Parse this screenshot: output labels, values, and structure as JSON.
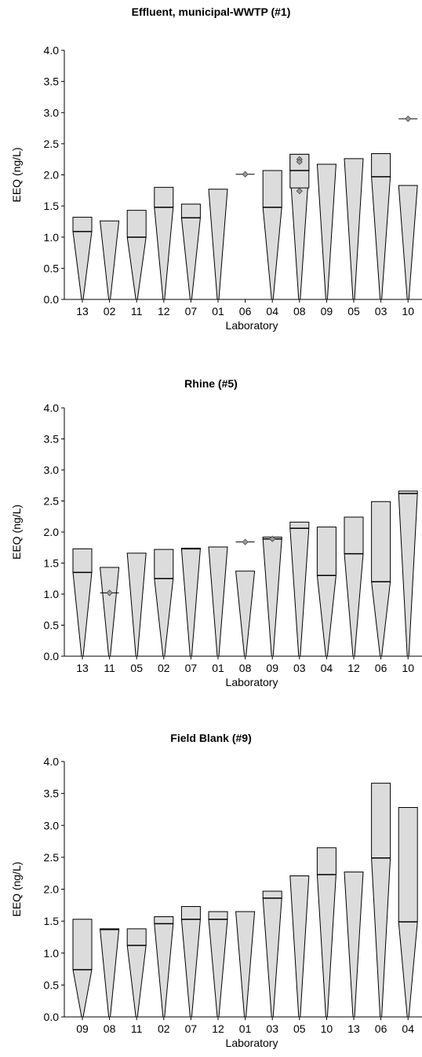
{
  "colors": {
    "fill": "#dcdcdc",
    "stroke": "#000000",
    "marker": "#9a9a9a",
    "axis": "#000000"
  },
  "chart_data": [
    {
      "type": "bar",
      "title": "Effluent, municipal-WWTP (#1)",
      "xlabel": "Laboratory",
      "ylabel": "EEQ (ng/L)",
      "ylim": [
        0,
        4
      ],
      "yticks": [
        "0.0",
        "0.5",
        "1.0",
        "1.5",
        "2.0",
        "2.5",
        "3.0",
        "3.5",
        "4.0"
      ],
      "grid": false,
      "categories": [
        "13",
        "02",
        "11",
        "12",
        "07",
        "01",
        "06",
        "04",
        "08",
        "09",
        "05",
        "03",
        "10"
      ],
      "upper": [
        1.32,
        1.26,
        1.43,
        1.8,
        1.53,
        1.77,
        null,
        2.07,
        2.33,
        2.17,
        2.26,
        2.34,
        1.83
      ],
      "median": [
        1.09,
        null,
        1.0,
        1.48,
        1.31,
        null,
        null,
        1.48,
        2.07,
        null,
        null,
        1.97,
        null
      ],
      "lower": [
        null,
        null,
        null,
        null,
        null,
        null,
        null,
        null,
        1.79,
        null,
        null,
        null,
        null
      ],
      "points": [
        [],
        [],
        [],
        [],
        [],
        [],
        [
          2.01
        ],
        [],
        [
          2.25,
          2.21,
          1.74
        ],
        [],
        [],
        [],
        [
          2.9
        ]
      ],
      "point_lines": [
        null,
        null,
        null,
        null,
        null,
        null,
        2.01,
        null,
        null,
        null,
        null,
        null,
        2.9
      ]
    },
    {
      "type": "bar",
      "title": "Rhine (#5)",
      "xlabel": "Laboratory",
      "ylabel": "EEQ (ng/L)",
      "ylim": [
        0,
        4
      ],
      "yticks": [
        "0.0",
        "0.5",
        "1.0",
        "1.5",
        "2.0",
        "2.5",
        "3.0",
        "3.5",
        "4.0"
      ],
      "grid": false,
      "categories": [
        "13",
        "11",
        "05",
        "02",
        "07",
        "01",
        "08",
        "09",
        "03",
        "04",
        "12",
        "06",
        "10"
      ],
      "upper": [
        1.73,
        1.43,
        1.66,
        1.72,
        1.74,
        1.76,
        1.37,
        1.92,
        2.16,
        2.08,
        2.24,
        2.49,
        2.66
      ],
      "median": [
        1.35,
        null,
        null,
        1.25,
        1.73,
        null,
        null,
        1.89,
        2.06,
        1.3,
        1.65,
        1.2,
        2.62
      ],
      "lower": [
        null,
        null,
        null,
        null,
        null,
        null,
        null,
        null,
        null,
        null,
        null,
        null,
        null
      ],
      "points": [
        [],
        [
          1.02
        ],
        [],
        [],
        [],
        [],
        [
          1.84
        ],
        [
          1.89
        ],
        [],
        [],
        [],
        [],
        []
      ],
      "point_lines": [
        null,
        1.02,
        null,
        null,
        null,
        null,
        1.84,
        null,
        null,
        null,
        null,
        null,
        null
      ]
    },
    {
      "type": "bar",
      "title": "Field Blank (#9)",
      "xlabel": "Laboratory",
      "ylabel": "EEQ (ng/L)",
      "ylim": [
        0,
        4
      ],
      "yticks": [
        "0.0",
        "0.5",
        "1.0",
        "1.5",
        "2.0",
        "2.5",
        "3.0",
        "3.5",
        "4.0"
      ],
      "grid": false,
      "categories": [
        "09",
        "08",
        "11",
        "02",
        "07",
        "12",
        "01",
        "03",
        "05",
        "10",
        "13",
        "06",
        "04"
      ],
      "upper": [
        1.53,
        1.38,
        1.38,
        1.57,
        1.73,
        1.65,
        1.65,
        1.97,
        2.21,
        2.65,
        2.27,
        3.66,
        3.28
      ],
      "median": [
        0.74,
        1.37,
        1.12,
        1.46,
        1.53,
        1.53,
        null,
        1.86,
        null,
        2.23,
        null,
        2.49,
        1.49
      ],
      "lower": [
        null,
        null,
        null,
        null,
        null,
        null,
        null,
        null,
        null,
        null,
        null,
        null,
        null
      ],
      "points": [
        [],
        [],
        [],
        [],
        [],
        [],
        [],
        [],
        [],
        [],
        [],
        [],
        []
      ],
      "point_lines": [
        null,
        null,
        null,
        null,
        null,
        null,
        null,
        null,
        null,
        null,
        null,
        null,
        null
      ]
    }
  ]
}
